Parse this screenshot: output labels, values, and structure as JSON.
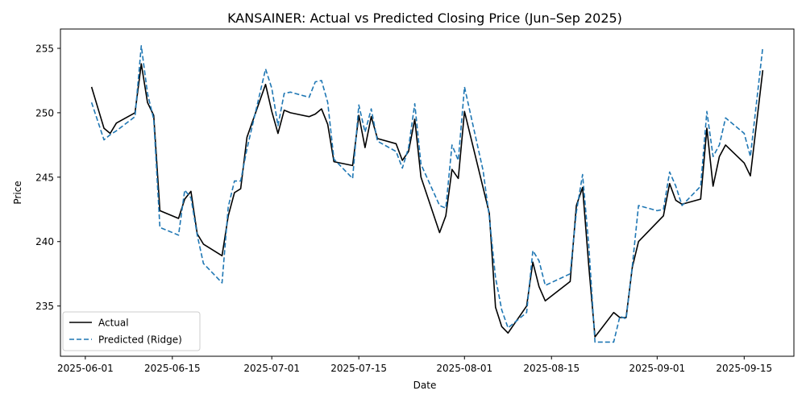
{
  "chart_data": {
    "type": "line",
    "title": "KANSAINER: Actual vs Predicted Closing Price (Jun–Sep 2025)",
    "xlabel": "Date",
    "ylabel": "Price",
    "xlim": [
      "2025-05-28",
      "2025-09-23"
    ],
    "ylim": [
      231.1,
      256.5
    ],
    "x_ticks": [
      "2025-06-01",
      "2025-06-15",
      "2025-07-01",
      "2025-07-15",
      "2025-08-01",
      "2025-08-15",
      "2025-09-01",
      "2025-09-15"
    ],
    "y_ticks": [
      235,
      240,
      245,
      250,
      255
    ],
    "grid": false,
    "legend": {
      "placement": "lower-left",
      "entries": [
        "Actual",
        "Predicted (Ridge)"
      ]
    },
    "series": [
      {
        "name": "Actual",
        "color": "#000000",
        "style": "solid",
        "points": [
          [
            "2025-06-02",
            252.0
          ],
          [
            "2025-06-04",
            248.8
          ],
          [
            "2025-06-05",
            248.4
          ],
          [
            "2025-06-06",
            249.2
          ],
          [
            "2025-06-09",
            250.0
          ],
          [
            "2025-06-10",
            253.8
          ],
          [
            "2025-06-11",
            250.8
          ],
          [
            "2025-06-12",
            249.8
          ],
          [
            "2025-06-13",
            242.4
          ],
          [
            "2025-06-16",
            241.8
          ],
          [
            "2025-06-17",
            243.3
          ],
          [
            "2025-06-18",
            243.9
          ],
          [
            "2025-06-19",
            240.6
          ],
          [
            "2025-06-20",
            239.8
          ],
          [
            "2025-06-23",
            238.9
          ],
          [
            "2025-06-24",
            242.0
          ],
          [
            "2025-06-25",
            243.8
          ],
          [
            "2025-06-26",
            244.1
          ],
          [
            "2025-06-27",
            248.1
          ],
          [
            "2025-06-30",
            252.2
          ],
          [
            "2025-07-01",
            250.1
          ],
          [
            "2025-07-02",
            248.4
          ],
          [
            "2025-07-03",
            250.2
          ],
          [
            "2025-07-04",
            250.0
          ],
          [
            "2025-07-07",
            249.7
          ],
          [
            "2025-07-08",
            249.9
          ],
          [
            "2025-07-09",
            250.3
          ],
          [
            "2025-07-10",
            249.1
          ],
          [
            "2025-07-11",
            246.2
          ],
          [
            "2025-07-14",
            245.9
          ],
          [
            "2025-07-15",
            249.8
          ],
          [
            "2025-07-16",
            247.3
          ],
          [
            "2025-07-17",
            249.7
          ],
          [
            "2025-07-18",
            248.0
          ],
          [
            "2025-07-21",
            247.6
          ],
          [
            "2025-07-22",
            246.3
          ],
          [
            "2025-07-23",
            247.0
          ],
          [
            "2025-07-24",
            249.5
          ],
          [
            "2025-07-25",
            245.0
          ],
          [
            "2025-07-28",
            240.7
          ],
          [
            "2025-07-29",
            242.0
          ],
          [
            "2025-07-30",
            245.6
          ],
          [
            "2025-07-31",
            244.9
          ],
          [
            "2025-08-01",
            250.1
          ],
          [
            "2025-08-05",
            242.2
          ],
          [
            "2025-08-06",
            234.9
          ],
          [
            "2025-08-07",
            233.4
          ],
          [
            "2025-08-08",
            232.9
          ],
          [
            "2025-08-11",
            235.0
          ],
          [
            "2025-08-12",
            238.4
          ],
          [
            "2025-08-13",
            236.5
          ],
          [
            "2025-08-14",
            235.4
          ],
          [
            "2025-08-18",
            236.9
          ],
          [
            "2025-08-19",
            242.8
          ],
          [
            "2025-08-20",
            244.2
          ],
          [
            "2025-08-21",
            238.1
          ],
          [
            "2025-08-22",
            232.6
          ],
          [
            "2025-08-25",
            234.5
          ],
          [
            "2025-08-26",
            234.1
          ],
          [
            "2025-08-27",
            234.1
          ],
          [
            "2025-08-28",
            238.0
          ],
          [
            "2025-08-29",
            240.0
          ],
          [
            "2025-09-01",
            241.5
          ],
          [
            "2025-09-02",
            242.0
          ],
          [
            "2025-09-03",
            244.5
          ],
          [
            "2025-09-04",
            243.2
          ],
          [
            "2025-09-05",
            242.9
          ],
          [
            "2025-09-08",
            243.3
          ],
          [
            "2025-09-09",
            248.8
          ],
          [
            "2025-09-10",
            244.3
          ],
          [
            "2025-09-11",
            246.6
          ],
          [
            "2025-09-12",
            247.5
          ],
          [
            "2025-09-15",
            246.1
          ],
          [
            "2025-09-16",
            245.1
          ],
          [
            "2025-09-18",
            253.3
          ]
        ]
      },
      {
        "name": "Predicted (Ridge)",
        "color": "#1f77b4",
        "style": "dashed",
        "points": [
          [
            "2025-06-02",
            250.8
          ],
          [
            "2025-06-04",
            247.9
          ],
          [
            "2025-06-05",
            248.3
          ],
          [
            "2025-06-06",
            248.6
          ],
          [
            "2025-06-09",
            249.7
          ],
          [
            "2025-06-10",
            255.2
          ],
          [
            "2025-06-11",
            251.5
          ],
          [
            "2025-06-12",
            249.5
          ],
          [
            "2025-06-13",
            241.1
          ],
          [
            "2025-06-16",
            240.5
          ],
          [
            "2025-06-17",
            244.0
          ],
          [
            "2025-06-18",
            243.4
          ],
          [
            "2025-06-19",
            240.5
          ],
          [
            "2025-06-20",
            238.3
          ],
          [
            "2025-06-23",
            236.8
          ],
          [
            "2025-06-24",
            242.7
          ],
          [
            "2025-06-25",
            244.7
          ],
          [
            "2025-06-26",
            244.7
          ],
          [
            "2025-06-27",
            247.2
          ],
          [
            "2025-06-30",
            253.4
          ],
          [
            "2025-07-01",
            251.9
          ],
          [
            "2025-07-02",
            249.0
          ],
          [
            "2025-07-03",
            251.5
          ],
          [
            "2025-07-04",
            251.6
          ],
          [
            "2025-07-07",
            251.2
          ],
          [
            "2025-07-08",
            252.4
          ],
          [
            "2025-07-09",
            252.5
          ],
          [
            "2025-07-10",
            250.8
          ],
          [
            "2025-07-11",
            246.4
          ],
          [
            "2025-07-14",
            244.9
          ],
          [
            "2025-07-15",
            250.6
          ],
          [
            "2025-07-16",
            248.5
          ],
          [
            "2025-07-17",
            250.3
          ],
          [
            "2025-07-18",
            247.8
          ],
          [
            "2025-07-21",
            247.0
          ],
          [
            "2025-07-22",
            245.7
          ],
          [
            "2025-07-23",
            247.3
          ],
          [
            "2025-07-24",
            250.7
          ],
          [
            "2025-07-25",
            246.0
          ],
          [
            "2025-07-28",
            242.8
          ],
          [
            "2025-07-29",
            242.6
          ],
          [
            "2025-07-30",
            247.5
          ],
          [
            "2025-07-31",
            246.3
          ],
          [
            "2025-08-01",
            252.0
          ],
          [
            "2025-08-04",
            245.5
          ],
          [
            "2025-08-05",
            241.9
          ],
          [
            "2025-08-06",
            237.2
          ],
          [
            "2025-08-07",
            234.7
          ],
          [
            "2025-08-08",
            233.3
          ],
          [
            "2025-08-11",
            234.5
          ],
          [
            "2025-08-12",
            239.3
          ],
          [
            "2025-08-13",
            238.5
          ],
          [
            "2025-08-14",
            236.6
          ],
          [
            "2025-08-18",
            237.5
          ],
          [
            "2025-08-19",
            242.3
          ],
          [
            "2025-08-20",
            245.2
          ],
          [
            "2025-08-21",
            239.7
          ],
          [
            "2025-08-22",
            232.2
          ],
          [
            "2025-08-25",
            232.2
          ],
          [
            "2025-08-26",
            234.2
          ],
          [
            "2025-08-27",
            234.0
          ],
          [
            "2025-08-28",
            238.1
          ],
          [
            "2025-08-29",
            242.8
          ],
          [
            "2025-09-01",
            242.4
          ],
          [
            "2025-09-02",
            242.5
          ],
          [
            "2025-09-03",
            245.4
          ],
          [
            "2025-09-04",
            244.3
          ],
          [
            "2025-09-05",
            242.8
          ],
          [
            "2025-09-08",
            244.3
          ],
          [
            "2025-09-09",
            250.1
          ],
          [
            "2025-09-10",
            246.6
          ],
          [
            "2025-09-11",
            247.5
          ],
          [
            "2025-09-12",
            249.6
          ],
          [
            "2025-09-15",
            248.4
          ],
          [
            "2025-09-16",
            246.6
          ],
          [
            "2025-09-18",
            255.1
          ]
        ]
      }
    ]
  }
}
